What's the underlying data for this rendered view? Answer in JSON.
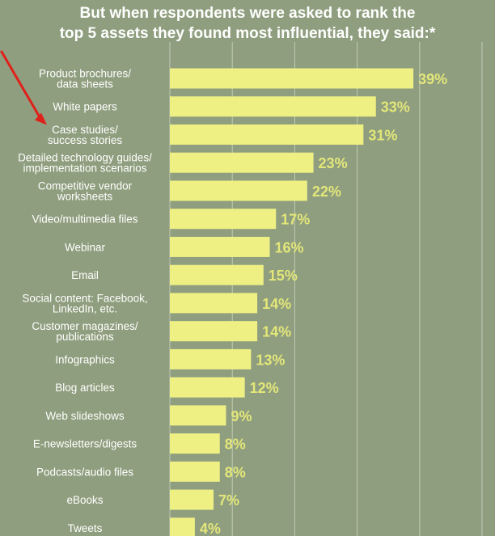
{
  "colors": {
    "background": "#8f9e7e",
    "bar": "#eef084",
    "value_label": "#e3e77a",
    "gridline": "#c2cbb6",
    "arrow": "#e0201b"
  },
  "header": {
    "title_line1": "But when respondents were asked to rank the",
    "title_line2": "top 5 assets they found most influential, they said:*"
  },
  "chart_data": {
    "type": "bar",
    "orientation": "horizontal",
    "title": "But when respondents were asked to rank the top 5 assets they found most influential, they said:*",
    "xlabel": "",
    "ylabel": "",
    "xlim": [
      0,
      50
    ],
    "grid": true,
    "categories": [
      "Product brochures/\ndata sheets",
      "White papers",
      "Case studies/\nsuccess stories",
      "Detailed technology guides/\nimplementation scenarios",
      "Competitive vendor\nworksheets",
      "Video/multimedia files",
      "Webinar",
      "Email",
      "Social content: Facebook,\nLinkedIn, etc.",
      "Customer magazines/\npublications",
      "Infographics",
      "Blog articles",
      "Web slideshows",
      "E-newsletters/digests",
      "Podcasts/audio files",
      "eBooks",
      "Tweets"
    ],
    "values": [
      39,
      33,
      31,
      23,
      22,
      17,
      16,
      15,
      14,
      14,
      13,
      12,
      9,
      8,
      8,
      7,
      4
    ],
    "value_labels": [
      "39%",
      "33%",
      "31%",
      "23%",
      "22%",
      "17%",
      "16%",
      "15%",
      "14%",
      "14%",
      "13%",
      "12%",
      "9%",
      "8%",
      "8%",
      "7%",
      "4%"
    ],
    "annotations": [
      {
        "type": "arrow",
        "points_to": "Case studies/\nsuccess stories"
      }
    ]
  }
}
